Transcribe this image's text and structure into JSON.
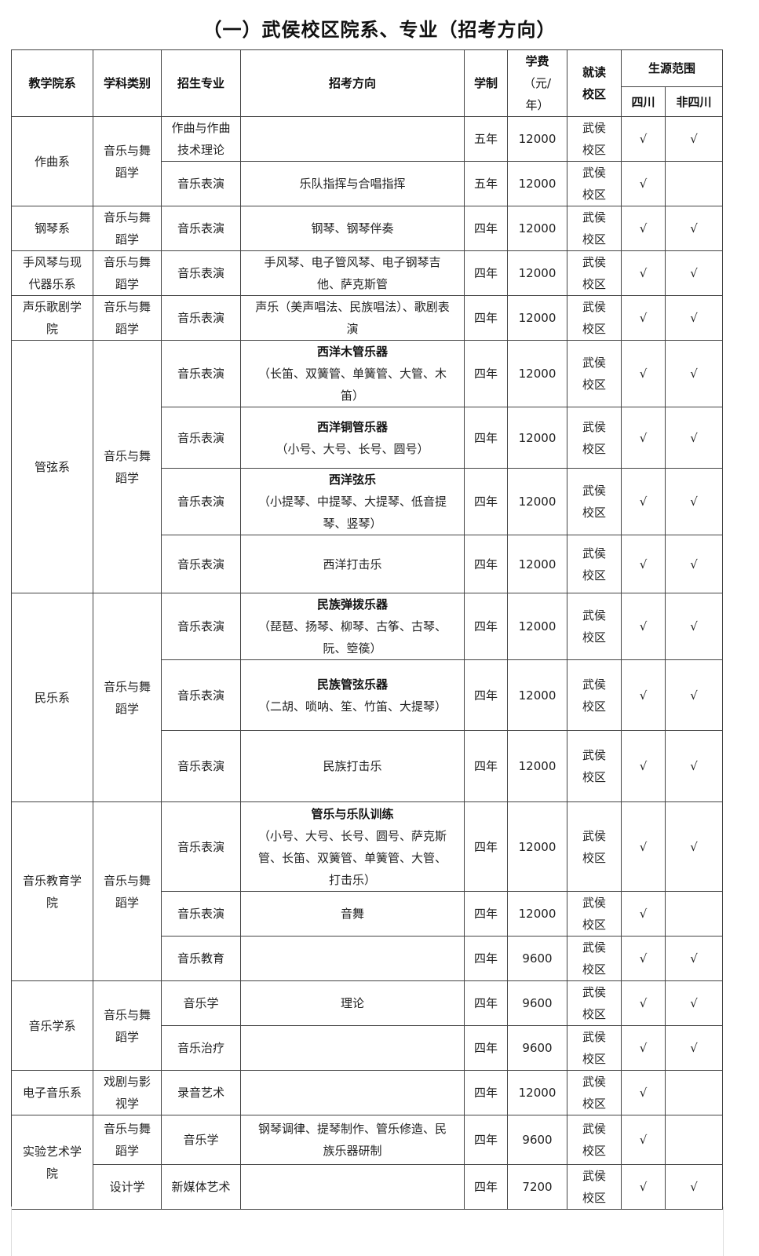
{
  "title": "（一）武侯校区院系、专业（招考方向）",
  "header": {
    "department": "教学院系",
    "category": "学科类别",
    "major": "招生专业",
    "direction": "招考方向",
    "duration": "学制",
    "fee": "学费",
    "fee_unit": "（元/年）",
    "campus": "就读校区",
    "source": "生源范围",
    "sichuan": "四川",
    "non_sichuan": "非四川"
  },
  "check_mark": "√",
  "departments": [
    {
      "name": "作曲系",
      "subjects": [
        {
          "category": "音乐与舞蹈学",
          "programs": [
            {
              "major": "作曲与作曲技术理论",
              "direction_title": "",
              "direction": "",
              "duration": "五年",
              "fee": "12000",
              "campus": "武侯校区",
              "sichuan": true,
              "non_sichuan": true
            },
            {
              "major": "音乐表演",
              "direction_title": "",
              "direction": "乐队指挥与合唱指挥",
              "duration": "五年",
              "fee": "12000",
              "campus": "武侯校区",
              "sichuan": true,
              "non_sichuan": false
            }
          ]
        }
      ]
    },
    {
      "name": "钢琴系",
      "subjects": [
        {
          "category": "音乐与舞蹈学",
          "programs": [
            {
              "major": "音乐表演",
              "direction_title": "",
              "direction": "钢琴、钢琴伴奏",
              "duration": "四年",
              "fee": "12000",
              "campus": "武侯校区",
              "sichuan": true,
              "non_sichuan": true
            }
          ]
        }
      ]
    },
    {
      "name": "手风琴与现代器乐系",
      "subjects": [
        {
          "category": "音乐与舞蹈学",
          "programs": [
            {
              "major": "音乐表演",
              "direction_title": "",
              "direction": "手风琴、电子管风琴、电子钢琴吉他、萨克斯管",
              "duration": "四年",
              "fee": "12000",
              "campus": "武侯校区",
              "sichuan": true,
              "non_sichuan": true
            }
          ]
        }
      ]
    },
    {
      "name": "声乐歌剧学院",
      "subjects": [
        {
          "category": "音乐与舞蹈学",
          "programs": [
            {
              "major": "音乐表演",
              "direction_title": "",
              "direction": "声乐（美声唱法、民族唱法）、歌剧表演",
              "duration": "四年",
              "fee": "12000",
              "campus": "武侯校区",
              "sichuan": true,
              "non_sichuan": true
            }
          ]
        }
      ]
    },
    {
      "name": "管弦系",
      "subjects": [
        {
          "category": "音乐与舞蹈学",
          "programs": [
            {
              "major": "音乐表演",
              "direction_title": "西洋木管乐器",
              "direction": "（长笛、双簧管、单簧管、大管、木笛）",
              "duration": "四年",
              "fee": "12000",
              "campus": "武侯校区",
              "sichuan": true,
              "non_sichuan": true
            },
            {
              "major": "音乐表演",
              "direction_title": "西洋铜管乐器",
              "direction": "（小号、大号、长号、圆号）",
              "duration": "四年",
              "fee": "12000",
              "campus": "武侯校区",
              "sichuan": true,
              "non_sichuan": true
            },
            {
              "major": "音乐表演",
              "direction_title": "西洋弦乐",
              "direction": "（小提琴、中提琴、大提琴、低音提琴、竖琴）",
              "duration": "四年",
              "fee": "12000",
              "campus": "武侯校区",
              "sichuan": true,
              "non_sichuan": true
            },
            {
              "major": "音乐表演",
              "direction_title": "",
              "direction": "西洋打击乐",
              "duration": "四年",
              "fee": "12000",
              "campus": "武侯校区",
              "sichuan": true,
              "non_sichuan": true
            }
          ]
        }
      ]
    },
    {
      "name": "民乐系",
      "subjects": [
        {
          "category": "音乐与舞蹈学",
          "programs": [
            {
              "major": "音乐表演",
              "direction_title": "民族弹拨乐器",
              "direction": "（琵琶、扬琴、柳琴、古筝、古琴、阮、箜篌）",
              "duration": "四年",
              "fee": "12000",
              "campus": "武侯校区",
              "sichuan": true,
              "non_sichuan": true
            },
            {
              "major": "音乐表演",
              "direction_title": "民族管弦乐器",
              "direction": "（二胡、唢呐、笙、竹笛、大提琴）",
              "duration": "四年",
              "fee": "12000",
              "campus": "武侯校区",
              "sichuan": true,
              "non_sichuan": true
            },
            {
              "major": "音乐表演",
              "direction_title": "",
              "direction": "民族打击乐",
              "duration": "四年",
              "fee": "12000",
              "campus": "武侯校区",
              "sichuan": true,
              "non_sichuan": true
            }
          ]
        }
      ]
    },
    {
      "name": "音乐教育学院",
      "subjects": [
        {
          "category": "音乐与舞蹈学",
          "programs": [
            {
              "major": "音乐表演",
              "direction_title": "管乐与乐队训练",
              "direction": "（小号、大号、长号、圆号、萨克斯管、长笛、双簧管、单簧管、大管、打击乐）",
              "duration": "四年",
              "fee": "12000",
              "campus": "武侯校区",
              "sichuan": true,
              "non_sichuan": true
            },
            {
              "major": "音乐表演",
              "direction_title": "",
              "direction": "音舞",
              "duration": "四年",
              "fee": "12000",
              "campus": "武侯校区",
              "sichuan": true,
              "non_sichuan": false
            },
            {
              "major": "音乐教育",
              "direction_title": "",
              "direction": "",
              "duration": "四年",
              "fee": "9600",
              "campus": "武侯校区",
              "sichuan": true,
              "non_sichuan": true
            }
          ]
        }
      ]
    },
    {
      "name": "音乐学系",
      "subjects": [
        {
          "category": "音乐与舞蹈学",
          "programs": [
            {
              "major": "音乐学",
              "direction_title": "",
              "direction": "理论",
              "duration": "四年",
              "fee": "9600",
              "campus": "武侯校区",
              "sichuan": true,
              "non_sichuan": true
            },
            {
              "major": "音乐治疗",
              "direction_title": "",
              "direction": "",
              "duration": "四年",
              "fee": "9600",
              "campus": "武侯校区",
              "sichuan": true,
              "non_sichuan": true
            }
          ]
        }
      ]
    },
    {
      "name": "电子音乐系",
      "subjects": [
        {
          "category": "戏剧与影视学",
          "programs": [
            {
              "major": "录音艺术",
              "direction_title": "",
              "direction": "",
              "duration": "四年",
              "fee": "12000",
              "campus": "武侯校区",
              "sichuan": true,
              "non_sichuan": false
            }
          ]
        }
      ]
    },
    {
      "name": "实验艺术学院",
      "subjects": [
        {
          "category": "音乐与舞蹈学",
          "programs": [
            {
              "major": "音乐学",
              "direction_title": "",
              "direction": "钢琴调律、提琴制作、管乐修造、民族乐器研制",
              "duration": "四年",
              "fee": "9600",
              "campus": "武侯校区",
              "sichuan": true,
              "non_sichuan": false
            }
          ]
        },
        {
          "category": "设计学",
          "programs": [
            {
              "major": "新媒体艺术",
              "direction_title": "",
              "direction": "",
              "duration": "四年",
              "fee": "7200",
              "campus": "武侯校区",
              "sichuan": true,
              "non_sichuan": true
            }
          ]
        }
      ]
    }
  ]
}
